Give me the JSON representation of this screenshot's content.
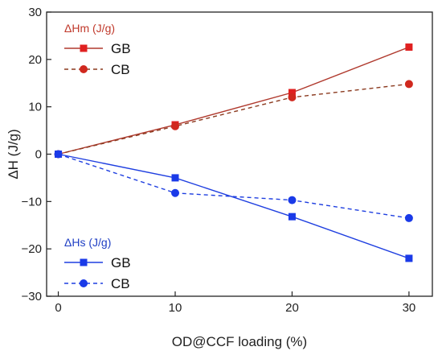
{
  "chart_data": {
    "type": "line",
    "xlabel": "OD@CCF loading (%)",
    "ylabel": "ΔH (J/g)",
    "xlim": [
      -1,
      32
    ],
    "ylim": [
      -30,
      30
    ],
    "xticks": [
      0,
      10,
      20,
      30
    ],
    "yticks": [
      -30,
      -20,
      -10,
      0,
      10,
      20,
      30
    ],
    "xtick_labels": [
      "0",
      "10",
      "20",
      "30"
    ],
    "ytick_labels": [
      "−30",
      "−20",
      "−10",
      "0",
      "10",
      "20",
      "30"
    ],
    "x": [
      0,
      10,
      20,
      30
    ],
    "grid": false,
    "legends": [
      {
        "title": "ΔHm (J/g)",
        "placement": "top-left",
        "title_color": "#c0392b",
        "entries": [
          "GB",
          "CB"
        ]
      },
      {
        "title": "ΔHs (J/g)",
        "placement": "bottom-left",
        "title_color": "#1f3fc4",
        "entries": [
          "GB",
          "CB"
        ]
      }
    ],
    "series": [
      {
        "name": "GB",
        "group": "ΔHm (J/g)",
        "values": [
          0,
          6.2,
          13.0,
          22.6
        ],
        "color": "#b03a2e",
        "marker_color": "#e02020",
        "marker": "square",
        "dash": false
      },
      {
        "name": "CB",
        "group": "ΔHm (J/g)",
        "values": [
          0,
          5.9,
          12.0,
          14.8
        ],
        "color": "#8b3a1f",
        "marker_color": "#d0281e",
        "marker": "circle",
        "dash": true
      },
      {
        "name": "GB",
        "group": "ΔHs (J/g)",
        "values": [
          0,
          -5.0,
          -13.2,
          -22.0
        ],
        "color": "#1f3fe0",
        "marker_color": "#1a3ae8",
        "marker": "square",
        "dash": false
      },
      {
        "name": "CB",
        "group": "ΔHs (J/g)",
        "values": [
          0,
          -8.2,
          -9.7,
          -13.5
        ],
        "color": "#1f3fe0",
        "marker_color": "#1a3ae8",
        "marker": "circle",
        "dash": true
      }
    ]
  }
}
